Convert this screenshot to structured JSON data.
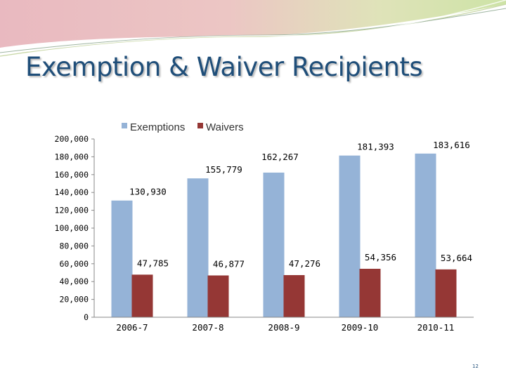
{
  "slide": {
    "title": "Exemption & Waiver Recipients",
    "page_number": "12"
  },
  "colors": {
    "banner_pink": "#e9b9c0",
    "banner_green": "#cde3a6",
    "title": "#1f4e79"
  },
  "chart_data": {
    "type": "bar",
    "title": "",
    "xlabel": "",
    "ylabel": "",
    "categories": [
      "2006-7",
      "2007-8",
      "2008-9",
      "2009-10",
      "2010-11"
    ],
    "series": [
      {
        "name": "Exemptions",
        "color": "#95b3d7",
        "values": [
          130930,
          155779,
          162267,
          181393,
          183616
        ],
        "labels": [
          "130,930",
          "155,779",
          "162,267",
          "181,393",
          "183,616"
        ]
      },
      {
        "name": "Waivers",
        "color": "#953735",
        "values": [
          47785,
          46877,
          47276,
          54356,
          53664
        ],
        "labels": [
          "47,785",
          "46,877",
          "47,276",
          "54,356",
          "53,664"
        ]
      }
    ],
    "ylim": [
      0,
      200000
    ],
    "yticks": [
      0,
      20000,
      40000,
      60000,
      80000,
      100000,
      120000,
      140000,
      160000,
      180000,
      200000
    ],
    "ytick_labels": [
      "0",
      "20,000",
      "40,000",
      "60,000",
      "80,000",
      "100,000",
      "120,000",
      "140,000",
      "160,000",
      "180,000",
      "200,000"
    ],
    "grid": false,
    "legend_position": "top"
  }
}
